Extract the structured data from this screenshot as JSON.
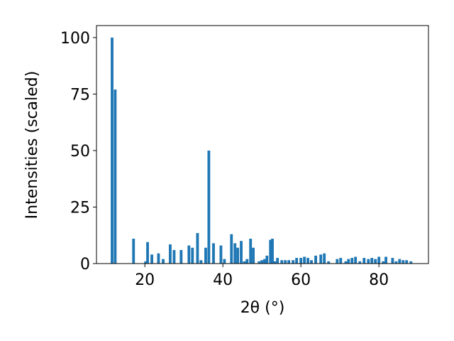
{
  "chart_data": {
    "type": "bar",
    "xlabel": "2θ (°)",
    "ylabel": "Intensities (scaled)",
    "color": "#1f77b4",
    "bar_width": 0.7,
    "x": [
      11.6,
      12.4,
      17.1,
      20.2,
      20.7,
      21.8,
      23.5,
      24.7,
      26.5,
      27.5,
      29.3,
      31.3,
      32.2,
      33.5,
      34.4,
      35.6,
      36.4,
      37.6,
      39.5,
      40.4,
      42.2,
      43.1,
      43.8,
      44.7,
      45.5,
      46.2,
      47.1,
      47.8,
      49.3,
      50.0,
      50.7,
      51.3,
      52.2,
      52.7,
      53.3,
      54.0,
      55.1,
      56.0,
      56.9,
      58.0,
      58.9,
      60.0,
      60.9,
      61.8,
      62.7,
      63.8,
      65.1,
      66.0,
      67.1,
      69.3,
      70.2,
      71.5,
      72.2,
      73.1,
      74.0,
      75.1,
      76.2,
      77.3,
      78.2,
      79.1,
      80.0,
      81.1,
      81.8,
      83.5,
      84.4,
      85.3,
      86.2,
      87.1,
      88.2
    ],
    "values": [
      100,
      77,
      11,
      1,
      9.5,
      4,
      4.5,
      2,
      8.5,
      6,
      6,
      8,
      7,
      13.5,
      1.5,
      7,
      50,
      9,
      8,
      2,
      13,
      9,
      7,
      10,
      1,
      2,
      11,
      7,
      1,
      1.5,
      2,
      3.5,
      10.5,
      11,
      1,
      2.5,
      1.5,
      1.5,
      1.5,
      1.5,
      2.5,
      2.5,
      3,
      2.5,
      1.5,
      3.5,
      4,
      4.5,
      1,
      2,
      2.5,
      1,
      2,
      2.5,
      3,
      1,
      2.5,
      2,
      2.5,
      2,
      3,
      1,
      3,
      2.5,
      1,
      2,
      1.5,
      1.5,
      1
    ],
    "xlim": [
      7.6,
      92.7
    ],
    "xticks": [
      20,
      40,
      60,
      80
    ],
    "ylim": [
      0,
      105.3
    ],
    "yticks": [
      0,
      25,
      50,
      75,
      100
    ]
  }
}
